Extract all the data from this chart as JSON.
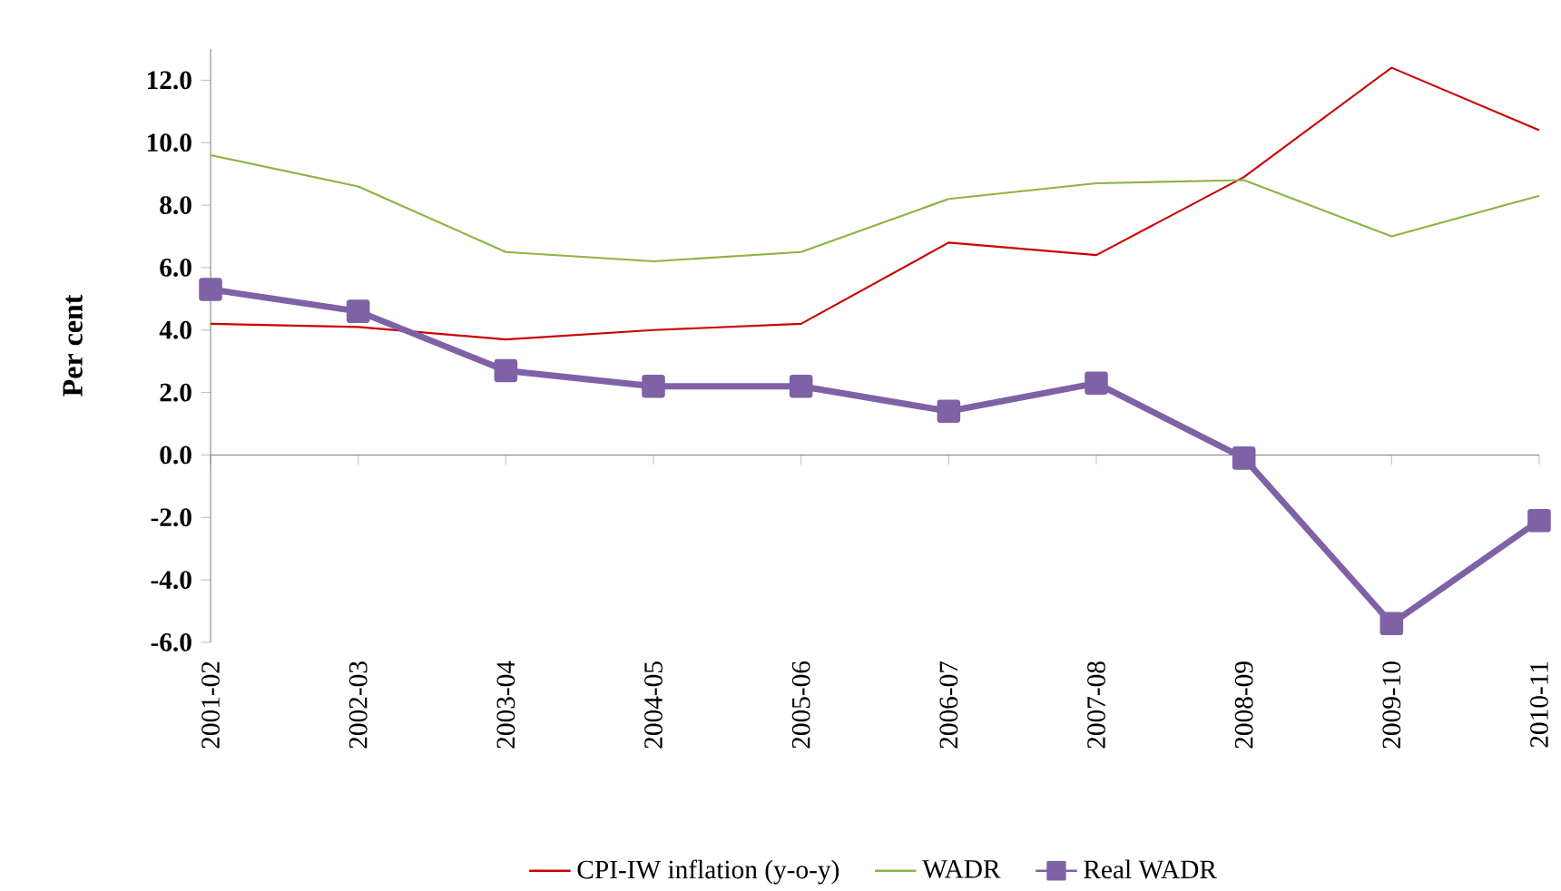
{
  "chart_data": {
    "type": "line",
    "ylabel": "Per cent",
    "categories": [
      "2001-02",
      "2002-03",
      "2003-04",
      "2004-05",
      "2005-06",
      "2006-07",
      "2007-08",
      "2008-09",
      "2009-10",
      "2010-11"
    ],
    "series": [
      {
        "name": "CPI-IW inflation (y-o-y)",
        "color": "#cc0000",
        "marker": "none",
        "values": [
          4.2,
          4.1,
          3.7,
          4.0,
          4.2,
          6.8,
          6.4,
          8.9,
          12.4,
          10.4
        ]
      },
      {
        "name": "WADR",
        "color": "#8db443",
        "marker": "none",
        "values": [
          9.6,
          8.6,
          6.5,
          6.2,
          6.5,
          8.2,
          8.7,
          8.8,
          7.0,
          8.3
        ]
      },
      {
        "name": "Real WADR",
        "color": "#7f62a6",
        "marker": "square",
        "values": [
          5.3,
          4.6,
          2.7,
          2.2,
          2.2,
          1.4,
          2.3,
          -0.1,
          -5.4,
          -2.1
        ]
      }
    ],
    "ylim": [
      -6,
      13
    ],
    "yticks": [
      {
        "value": -6,
        "label": "-6.0"
      },
      {
        "value": -4,
        "label": "-4.0"
      },
      {
        "value": -2,
        "label": "-2.0"
      },
      {
        "value": 0,
        "label": "0.0"
      },
      {
        "value": 2,
        "label": "2.0"
      },
      {
        "value": 4,
        "label": "4.0"
      },
      {
        "value": 6,
        "label": "6.0"
      },
      {
        "value": 8,
        "label": "8.0"
      },
      {
        "value": 10,
        "label": "10.0"
      },
      {
        "value": 12,
        "label": "12.0"
      }
    ],
    "legend": "bottom"
  }
}
